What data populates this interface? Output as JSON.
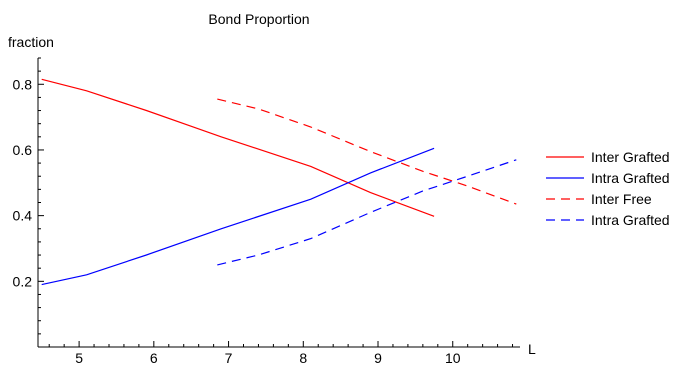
{
  "chart_data": {
    "type": "line",
    "title": "Bond Proportion",
    "xlabel": "L",
    "ylabel": "fraction",
    "xlim": [
      4.45,
      10.9
    ],
    "ylim": [
      0.0,
      0.88
    ],
    "xticks": [
      5,
      6,
      7,
      8,
      9,
      10
    ],
    "xtick_labels": [
      "5",
      "6",
      "7",
      "8",
      "9",
      "10"
    ],
    "yticks": [
      0.2,
      0.4,
      0.6,
      0.8
    ],
    "ytick_labels": [
      "0.2",
      "0.4",
      "0.6",
      "0.8"
    ],
    "grid": false,
    "legend_position": "right",
    "series": [
      {
        "name": "Inter Grafted",
        "color": "#ff0000",
        "dash": "solid",
        "x": [
          4.5,
          5.1,
          5.9,
          6.9,
          8.1,
          8.9,
          9.75
        ],
        "y": [
          0.815,
          0.78,
          0.72,
          0.64,
          0.55,
          0.47,
          0.398
        ]
      },
      {
        "name": "Intra Grafted",
        "color": "#0000ff",
        "dash": "solid",
        "x": [
          4.5,
          5.1,
          5.9,
          6.9,
          8.1,
          8.9,
          9.75
        ],
        "y": [
          0.19,
          0.22,
          0.28,
          0.36,
          0.45,
          0.53,
          0.605
        ]
      },
      {
        "name": "Inter Free",
        "color": "#ff0000",
        "dash": "dashed",
        "x": [
          6.85,
          7.4,
          8.1,
          8.9,
          9.6,
          10.2,
          10.85
        ],
        "y": [
          0.755,
          0.725,
          0.67,
          0.595,
          0.535,
          0.49,
          0.435
        ]
      },
      {
        "name": "Intra Grafted",
        "color": "#0000ff",
        "dash": "dashed",
        "x": [
          6.85,
          7.4,
          8.1,
          8.9,
          9.6,
          10.2,
          10.85
        ],
        "y": [
          0.25,
          0.28,
          0.33,
          0.41,
          0.475,
          0.52,
          0.57
        ]
      }
    ]
  }
}
